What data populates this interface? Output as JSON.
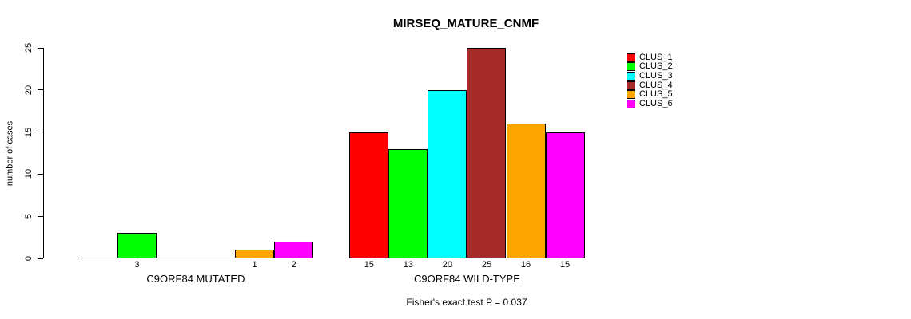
{
  "chart_data": {
    "type": "bar",
    "title": "MIRSEQ_MATURE_CNMF",
    "ylabel": "number of cases",
    "xlabel": "",
    "footnote": "Fisher's exact test P = 0.037",
    "ylim": [
      0,
      25
    ],
    "yticks": [
      0,
      5,
      10,
      15,
      20,
      25
    ],
    "grid": false,
    "legend_position": "right",
    "legend": [
      {
        "label": "CLUS_1",
        "color": "#FF0000"
      },
      {
        "label": "CLUS_2",
        "color": "#00FF00"
      },
      {
        "label": "CLUS_3",
        "color": "#00FFFF"
      },
      {
        "label": "CLUS_4",
        "color": "#A52A2A"
      },
      {
        "label": "CLUS_5",
        "color": "#FFA500"
      },
      {
        "label": "CLUS_6",
        "color": "#FF00FF"
      }
    ],
    "groups": [
      {
        "label": "C9ORF84 MUTATED",
        "values": [
          0,
          3,
          0,
          0,
          1,
          2
        ],
        "value_labels": [
          "",
          "3",
          "",
          "",
          "1",
          "2"
        ]
      },
      {
        "label": "C9ORF84 WILD-TYPE",
        "values": [
          15,
          13,
          20,
          25,
          16,
          15
        ],
        "value_labels": [
          "15",
          "13",
          "20",
          "25",
          "16",
          "15"
        ]
      }
    ]
  }
}
